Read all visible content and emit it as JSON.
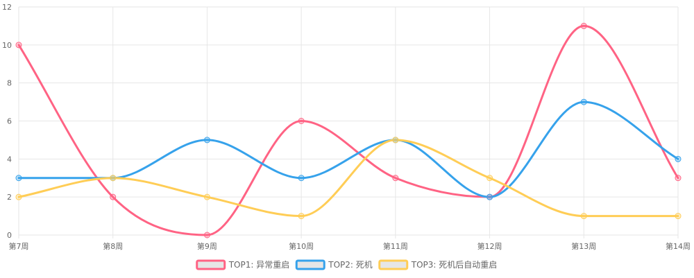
{
  "chart_data": {
    "type": "line",
    "categories": [
      "第7周",
      "第8周",
      "第9周",
      "第10周",
      "第11周",
      "第12周",
      "第13周",
      "第14周"
    ],
    "series": [
      {
        "name": "TOP1: 异常重启",
        "values": [
          10,
          2,
          0,
          6,
          3,
          2,
          11,
          3
        ],
        "color": "#ff6384"
      },
      {
        "name": "TOP2: 死机",
        "values": [
          3,
          3,
          5,
          3,
          5,
          2,
          7,
          4
        ],
        "color": "#36a2eb"
      },
      {
        "name": "TOP3: 死机后自动重启",
        "values": [
          2,
          3,
          2,
          1,
          5,
          3,
          1,
          1
        ],
        "color": "#ffcd56"
      }
    ],
    "ylim": [
      0,
      12
    ],
    "yticks": [
      0,
      2,
      4,
      6,
      8,
      10,
      12
    ],
    "grid": true,
    "legend_position": "bottom",
    "gridColor": "#e6e6e6",
    "textColor": "#666666",
    "legendBoxFill": "#e6e6e6"
  }
}
